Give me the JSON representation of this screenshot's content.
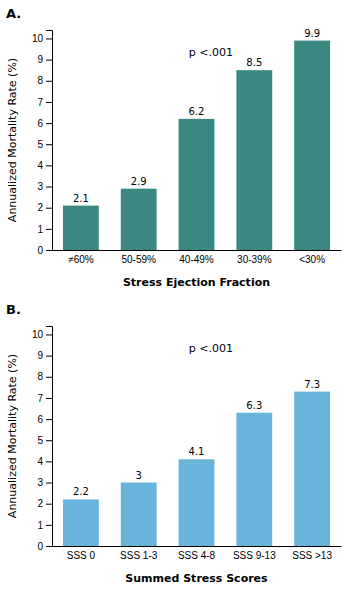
{
  "chart_data": [
    {
      "type": "bar",
      "title": "A.",
      "categories": [
        "≠60%",
        "50-59%",
        "40-49%",
        "30-39%",
        "<30%"
      ],
      "values": [
        2.1,
        2.9,
        6.2,
        8.5,
        9.9
      ],
      "color": "#3b8880",
      "ylabel": "Annualized Mortality Rate (%)",
      "xlabel": "Stress Ejection Fraction",
      "annotation": "p <.001",
      "ylim": [
        0,
        10.4
      ],
      "yticks": [
        0,
        1,
        2,
        3,
        4,
        5,
        6,
        7,
        8,
        9,
        10
      ],
      "data_labels": true,
      "grid": false
    },
    {
      "type": "bar",
      "title": "B.",
      "categories": [
        "SSS 0",
        "SSS 1-3",
        "SSS 4-8",
        "SSS 9-13",
        "SSS >13"
      ],
      "values": [
        2.2,
        3.0,
        4.1,
        6.3,
        7.3
      ],
      "color": "#6ab4dc",
      "ylabel": "Annualized Mortality Rate (%)",
      "xlabel": "Summed Stress Scores",
      "annotation": "p <.001",
      "ylim": [
        0,
        10.4
      ],
      "yticks": [
        0,
        1,
        2,
        3,
        4,
        5,
        6,
        7,
        8,
        9,
        10
      ],
      "data_labels": true,
      "grid": false
    }
  ]
}
